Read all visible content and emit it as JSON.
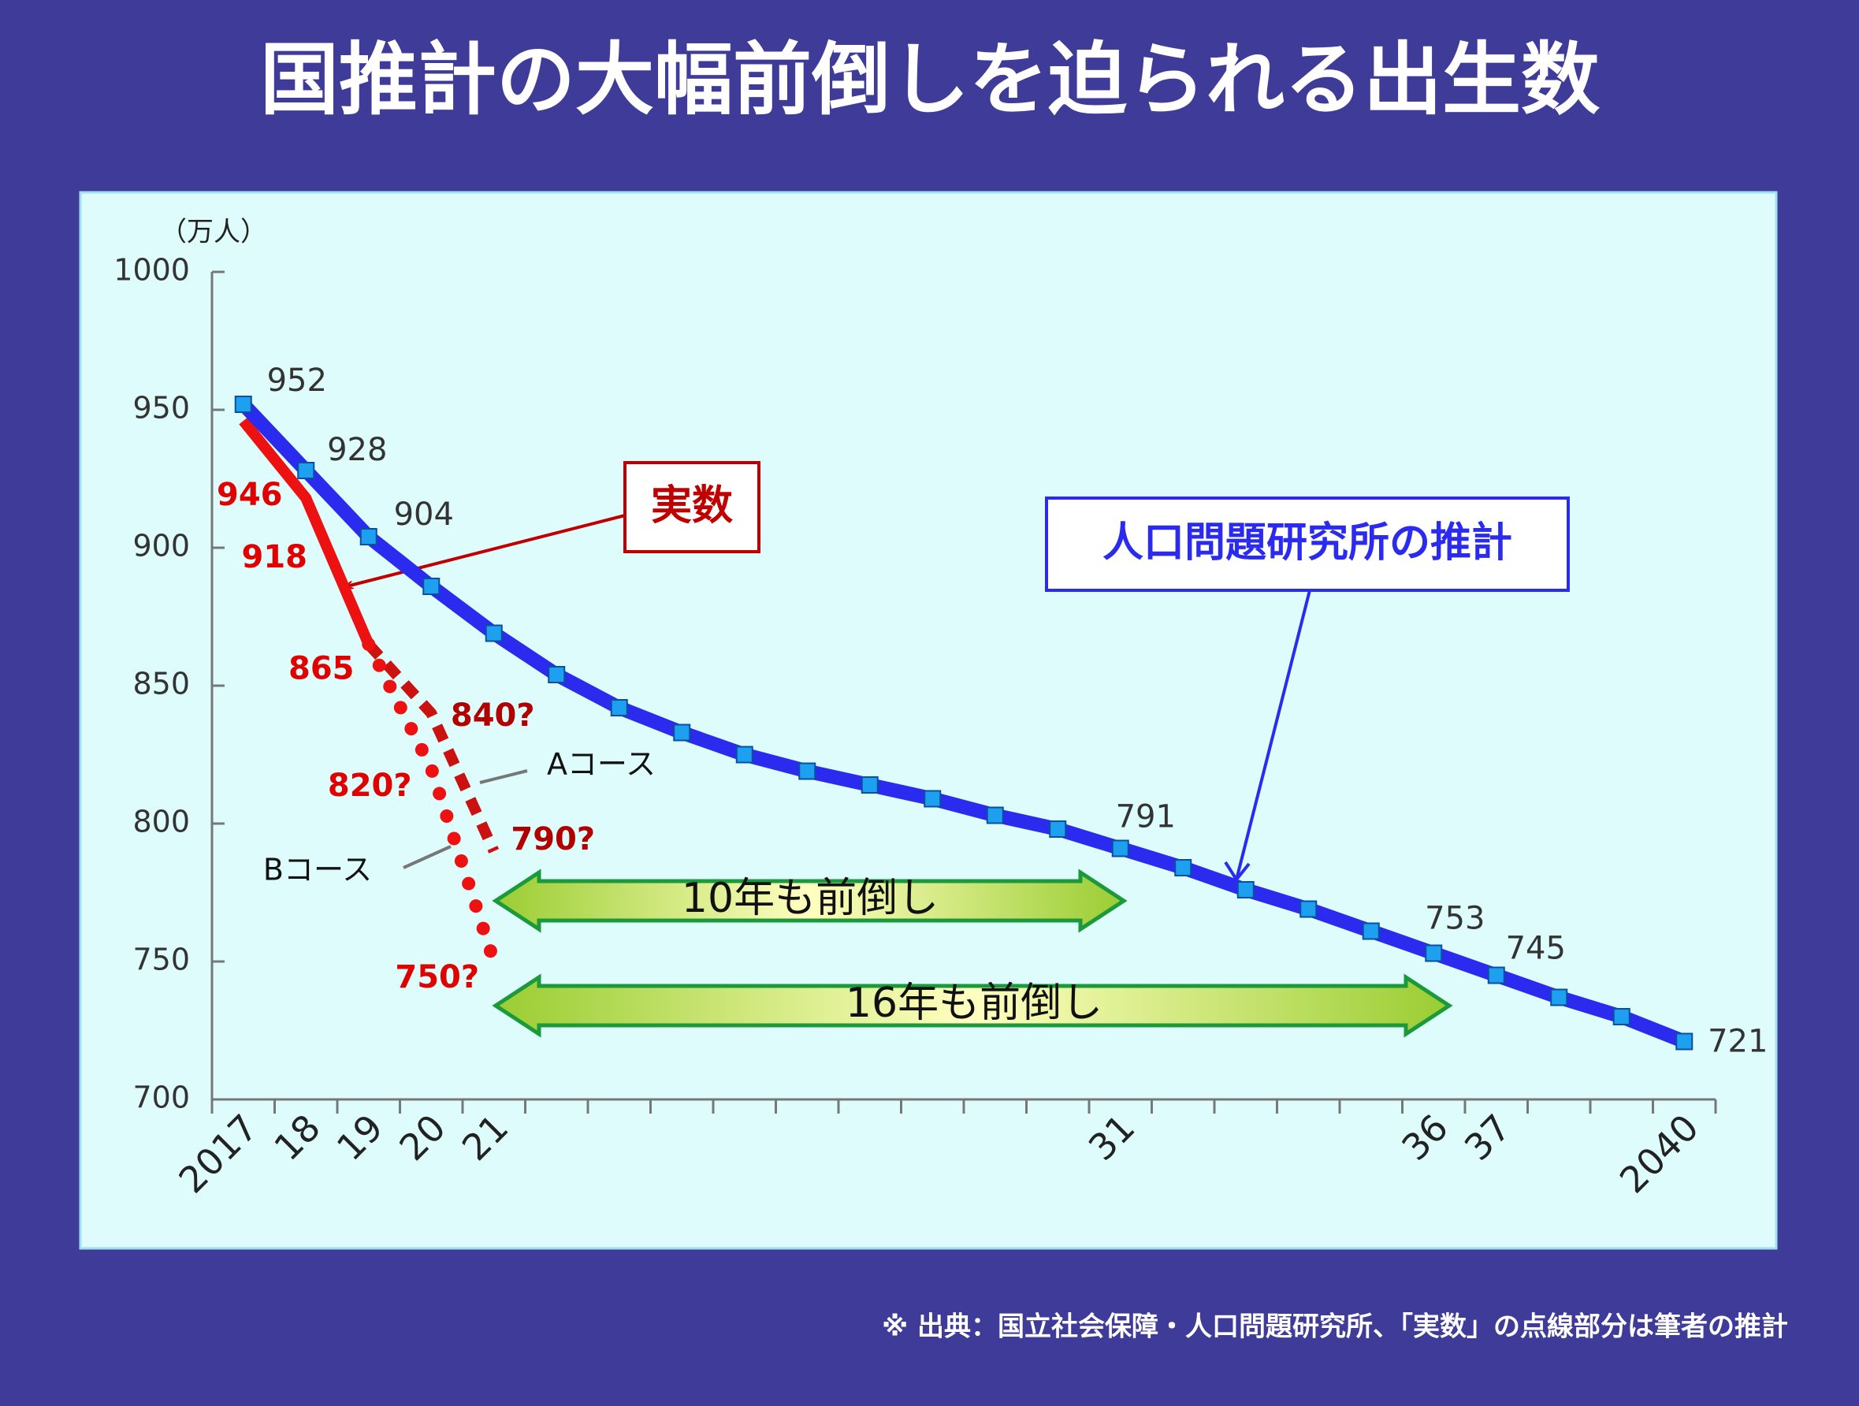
{
  "chart_data": {
    "type": "line",
    "title": "国推計の大幅前倒しを迫られる出生数",
    "y_unit": "（万人）",
    "categories": [
      "2017",
      "18",
      "19",
      "20",
      "21",
      null,
      null,
      null,
      null,
      null,
      null,
      null,
      null,
      null,
      "31",
      null,
      null,
      null,
      null,
      "36",
      "37",
      null,
      null,
      "2040"
    ],
    "ylim": [
      700,
      1000
    ],
    "yticks": [
      700,
      750,
      800,
      850,
      900,
      950,
      1000
    ],
    "grid": false,
    "series": [
      {
        "name": "人口問題研究所の推計",
        "color": "#2b2bef",
        "style": "solid",
        "markers": true,
        "values": [
          952,
          928,
          904,
          886,
          869,
          854,
          842,
          833,
          825,
          819,
          814,
          809,
          803,
          798,
          791,
          784,
          776,
          769,
          761,
          753,
          745,
          737,
          730,
          721
        ],
        "value_labels": [
          "952",
          "928",
          "904",
          null,
          null,
          null,
          null,
          null,
          null,
          null,
          null,
          null,
          null,
          null,
          "791",
          null,
          null,
          null,
          null,
          "753",
          "745",
          null,
          null,
          "721"
        ]
      },
      {
        "name": "実数",
        "color": "#ee1111",
        "style": "solid",
        "markers": false,
        "values": [
          946,
          918,
          865,
          null,
          null,
          null,
          null,
          null,
          null,
          null,
          null,
          null,
          null,
          null,
          null,
          null,
          null,
          null,
          null,
          null,
          null,
          null,
          null,
          null
        ],
        "value_labels": [
          "946",
          "918",
          "865",
          null,
          null,
          null,
          null,
          null,
          null,
          null,
          null,
          null,
          null,
          null,
          null,
          null,
          null,
          null,
          null,
          null,
          null,
          null,
          null,
          null
        ]
      },
      {
        "name": "Aコース",
        "color": "#cc1111",
        "style": "dashed",
        "markers": false,
        "values": [
          null,
          null,
          865,
          840,
          790,
          null,
          null,
          null,
          null,
          null,
          null,
          null,
          null,
          null,
          null,
          null,
          null,
          null,
          null,
          null,
          null,
          null,
          null,
          null
        ],
        "value_labels": [
          null,
          null,
          null,
          "840?",
          "790?",
          null,
          null,
          null,
          null,
          null,
          null,
          null,
          null,
          null,
          null,
          null,
          null,
          null,
          null,
          null,
          null,
          null,
          null,
          null
        ]
      },
      {
        "name": "Bコース",
        "color": "#ee1111",
        "style": "dotted",
        "markers": false,
        "values": [
          null,
          null,
          865,
          820,
          750,
          null,
          null,
          null,
          null,
          null,
          null,
          null,
          null,
          null,
          null,
          null,
          null,
          null,
          null,
          null,
          null,
          null,
          null,
          null
        ],
        "value_labels": [
          null,
          null,
          null,
          "820?",
          "750?",
          null,
          null,
          null,
          null,
          null,
          null,
          null,
          null,
          null,
          null,
          null,
          null,
          null,
          null,
          null,
          null,
          null,
          null,
          null
        ]
      }
    ],
    "annotations": [
      "10年も前倒し",
      "16年も前倒し"
    ],
    "source": "※ 出典：国立社会保障・人口問題研究所、「実数」の点線部分は筆者の推計"
  }
}
